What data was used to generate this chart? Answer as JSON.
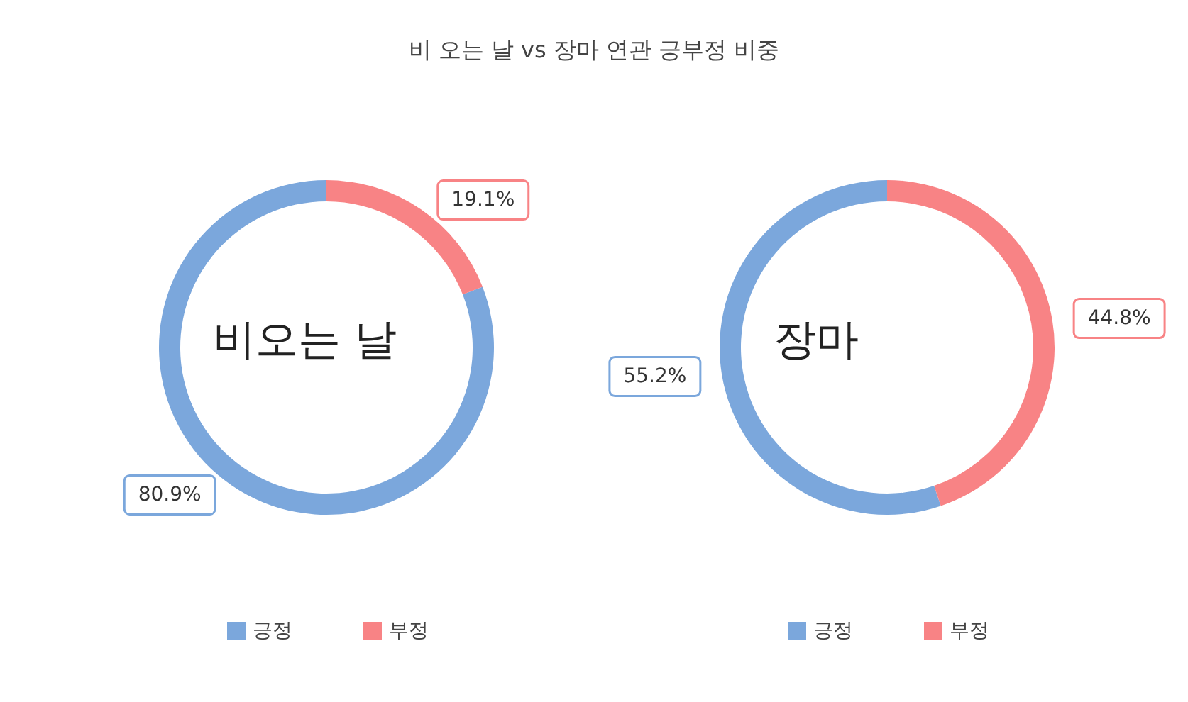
{
  "chart_data": [
    {
      "type": "donut",
      "title": "비오는 날",
      "annotations": [
        "비 오는 날 vs 장마 연관 긍부정 비중"
      ],
      "categories": [
        "긍정",
        "부정"
      ],
      "values": [
        80.9,
        19.1
      ],
      "value_labels": [
        "80.9%",
        "19.1%"
      ],
      "colors": [
        "#7ba7dc",
        "#f88385"
      ],
      "legend": "bottom"
    },
    {
      "type": "donut",
      "title": "장마",
      "categories": [
        "긍정",
        "부정"
      ],
      "values": [
        55.2,
        44.8
      ],
      "value_labels": [
        "55.2%",
        "44.8%"
      ],
      "colors": [
        "#7ba7dc",
        "#f88385"
      ],
      "legend": "bottom"
    }
  ]
}
